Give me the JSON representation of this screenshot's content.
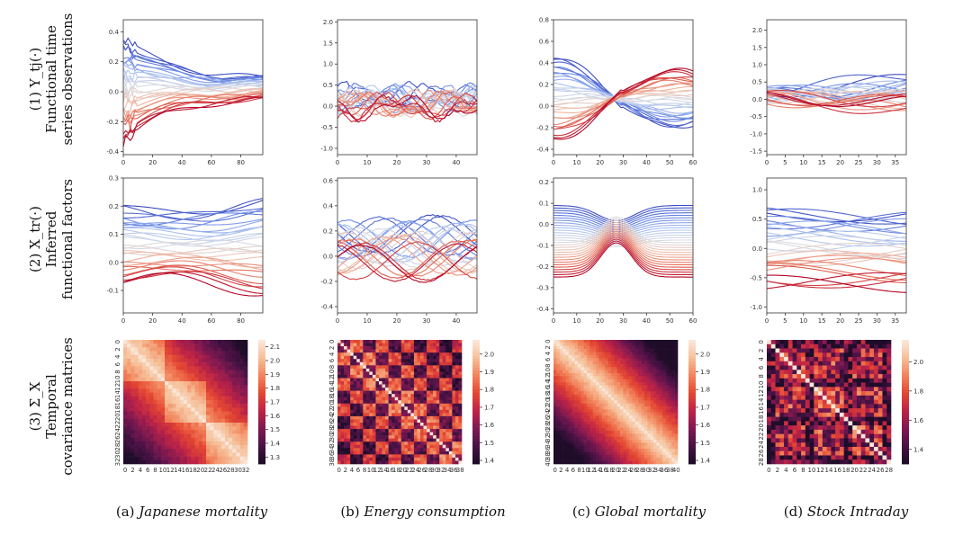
{
  "row_labels": [
    {
      "lines": [
        "(1) Y_tj(·)",
        "Functional time",
        "series observations"
      ]
    },
    {
      "lines": [
        "(2) X_tr(·)",
        "Inferred",
        "functional factors"
      ]
    },
    {
      "lines": [
        "(3) Σ_X",
        "Temporal",
        "covariance matrices"
      ]
    }
  ],
  "captions": [
    {
      "prefix": "(a) ",
      "name": "Japanese mortality"
    },
    {
      "prefix": "(b) ",
      "name": "Energy consumption"
    },
    {
      "prefix": "(c) ",
      "name": "Global mortality"
    },
    {
      "prefix": "(d) ",
      "name": "Stock Intraday"
    }
  ],
  "colors": {
    "cool": "#3b4cc0",
    "warm": "#b40426",
    "mid": "#dddddd"
  },
  "chart_data": [
    {
      "type": "line",
      "row": 1,
      "col": "a",
      "xlim": [
        0,
        95
      ],
      "ylim": [
        -0.42,
        0.48
      ],
      "xticks": [
        0,
        20,
        40,
        60,
        80
      ],
      "yticks": [
        -0.4,
        -0.2,
        0.0,
        0.2,
        0.4
      ],
      "yformat": 1,
      "n_series": 30,
      "pattern": "converge"
    },
    {
      "type": "line",
      "row": 1,
      "col": "b",
      "xlim": [
        0,
        47
      ],
      "ylim": [
        -1.15,
        2.05
      ],
      "xticks": [
        0,
        10,
        20,
        30,
        40
      ],
      "yticks": [
        -1.0,
        -0.5,
        0.0,
        0.5,
        1.0,
        1.5,
        2.0
      ],
      "yformat": 1,
      "n_series": 30,
      "pattern": "noisy"
    },
    {
      "type": "line",
      "row": 1,
      "col": "c",
      "xlim": [
        0,
        60
      ],
      "ylim": [
        -0.45,
        0.8
      ],
      "xticks": [
        0,
        10,
        20,
        30,
        40,
        50,
        60
      ],
      "yticks": [
        -0.4,
        -0.2,
        0.0,
        0.2,
        0.4,
        0.6,
        0.8
      ],
      "yformat": 1,
      "n_series": 30,
      "pattern": "cross"
    },
    {
      "type": "line",
      "row": 1,
      "col": "d",
      "xlim": [
        0,
        38
      ],
      "ylim": [
        -1.6,
        2.3
      ],
      "xticks": [
        0,
        5,
        10,
        15,
        20,
        25,
        30,
        35
      ],
      "yticks": [
        -1.5,
        -1.0,
        -0.5,
        0.0,
        0.5,
        1.0,
        1.5,
        2.0
      ],
      "yformat": 1,
      "n_series": 30,
      "pattern": "diverge"
    },
    {
      "type": "line",
      "row": 2,
      "col": "a",
      "xlim": [
        0,
        95
      ],
      "ylim": [
        -0.18,
        0.3
      ],
      "xticks": [
        0,
        20,
        40,
        60,
        80
      ],
      "yticks": [
        -0.1,
        0.0,
        0.1,
        0.2,
        0.3
      ],
      "yformat": 1,
      "n_series": 30,
      "pattern": "smooth"
    },
    {
      "type": "line",
      "row": 2,
      "col": "b",
      "xlim": [
        0,
        47
      ],
      "ylim": [
        -0.45,
        0.62
      ],
      "xticks": [
        0,
        10,
        20,
        30,
        40
      ],
      "yticks": [
        -0.4,
        -0.2,
        0.0,
        0.2,
        0.4,
        0.6
      ],
      "yformat": 1,
      "n_series": 30,
      "pattern": "wavy"
    },
    {
      "type": "line",
      "row": 2,
      "col": "c",
      "xlim": [
        0,
        60
      ],
      "ylim": [
        -0.42,
        0.22
      ],
      "xticks": [
        0,
        10,
        20,
        30,
        40,
        50,
        60
      ],
      "yticks": [
        -0.4,
        -0.3,
        -0.2,
        -0.1,
        0.0,
        0.1,
        0.2
      ],
      "yformat": 1,
      "n_series": 30,
      "pattern": "bump"
    },
    {
      "type": "line",
      "row": 2,
      "col": "d",
      "xlim": [
        0,
        38
      ],
      "ylim": [
        -1.1,
        1.2
      ],
      "xticks": [
        0,
        5,
        10,
        15,
        20,
        25,
        30,
        35
      ],
      "yticks": [
        -1.0,
        -0.5,
        0.0,
        0.5,
        1.0
      ],
      "yformat": 1,
      "n_series": 30,
      "pattern": "flat"
    },
    {
      "type": "heatmap",
      "row": 3,
      "col": "a",
      "size": 33,
      "ticks": [
        0,
        2,
        4,
        6,
        8,
        10,
        12,
        14,
        16,
        18,
        20,
        22,
        24,
        26,
        28,
        30,
        32
      ],
      "cbar_ticks": [
        1.3,
        1.4,
        1.5,
        1.6,
        1.7,
        1.8,
        1.9,
        2.0,
        2.1
      ],
      "vmin": 1.25,
      "vmax": 2.15,
      "pattern": "blocks3"
    },
    {
      "type": "heatmap",
      "row": 3,
      "col": "b",
      "size": 39,
      "ticks": [
        0,
        2,
        4,
        6,
        8,
        10,
        12,
        14,
        16,
        18,
        20,
        22,
        24,
        26,
        28,
        30,
        32,
        34,
        36,
        38
      ],
      "cbar_ticks": [
        1.4,
        1.5,
        1.6,
        1.7,
        1.8,
        1.9,
        2.0
      ],
      "vmin": 1.38,
      "vmax": 2.08,
      "pattern": "checker"
    },
    {
      "type": "heatmap",
      "row": 3,
      "col": "c",
      "size": 41,
      "ticks": [
        0,
        2,
        4,
        6,
        8,
        10,
        12,
        14,
        16,
        18,
        20,
        22,
        24,
        26,
        28,
        30,
        32,
        34,
        36,
        38,
        40
      ],
      "cbar_ticks": [
        1.4,
        1.5,
        1.6,
        1.7,
        1.8,
        1.9,
        2.0
      ],
      "vmin": 1.38,
      "vmax": 2.08,
      "pattern": "band"
    },
    {
      "type": "heatmap",
      "row": 3,
      "col": "d",
      "size": 29,
      "ticks": [
        0,
        2,
        4,
        6,
        8,
        10,
        12,
        14,
        16,
        18,
        20,
        22,
        24,
        26,
        28
      ],
      "cbar_ticks": [
        1.4,
        1.6,
        1.8,
        2.0
      ],
      "vmin": 1.3,
      "vmax": 2.15,
      "pattern": "random"
    }
  ]
}
